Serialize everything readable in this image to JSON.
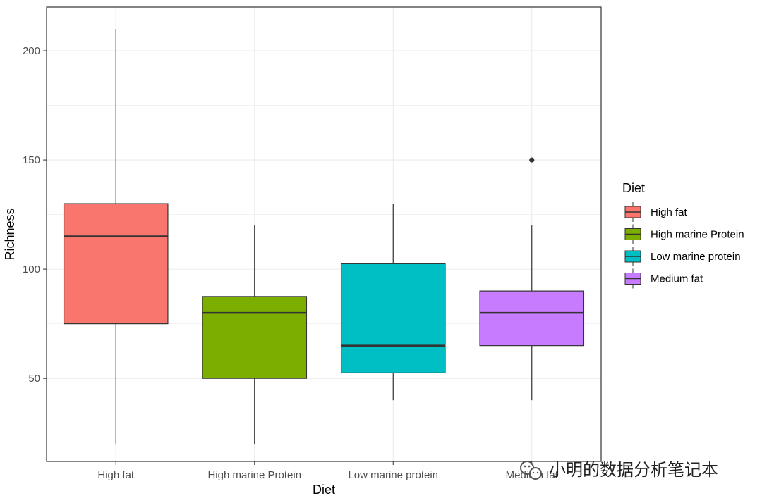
{
  "chart_data": {
    "type": "box",
    "xlabel": "Diet",
    "ylabel": "Richness",
    "ylim": [
      12,
      220
    ],
    "yticks": [
      50,
      100,
      150,
      200
    ],
    "grid": true,
    "categories": [
      "High fat",
      "High marine Protein",
      "Low marine protein",
      "Medium fat"
    ],
    "series": [
      {
        "category": "High fat",
        "min": 20,
        "q1": 75,
        "median": 115,
        "q3": 130,
        "max": 210,
        "outliers": [],
        "color": "#F8766D"
      },
      {
        "category": "High marine Protein",
        "min": 20,
        "q1": 50,
        "median": 80,
        "q3": 87.5,
        "max": 120,
        "outliers": [],
        "color": "#7CAE00"
      },
      {
        "category": "Low marine protein",
        "min": 40,
        "q1": 52.5,
        "median": 65,
        "q3": 102.5,
        "max": 130,
        "outliers": [],
        "color": "#00BFC4"
      },
      {
        "category": "Medium fat",
        "min": 40,
        "q1": 65,
        "median": 80,
        "q3": 90,
        "max": 120,
        "outliers": [
          150
        ],
        "color": "#C77CFF"
      }
    ],
    "legend": {
      "title": "Diet",
      "position": "right",
      "entries": [
        "High fat",
        "High marine Protein",
        "Low marine protein",
        "Medium fat"
      ]
    }
  },
  "watermark": {
    "text": "小明的数据分析笔记本",
    "icon": "wechat-icon"
  }
}
